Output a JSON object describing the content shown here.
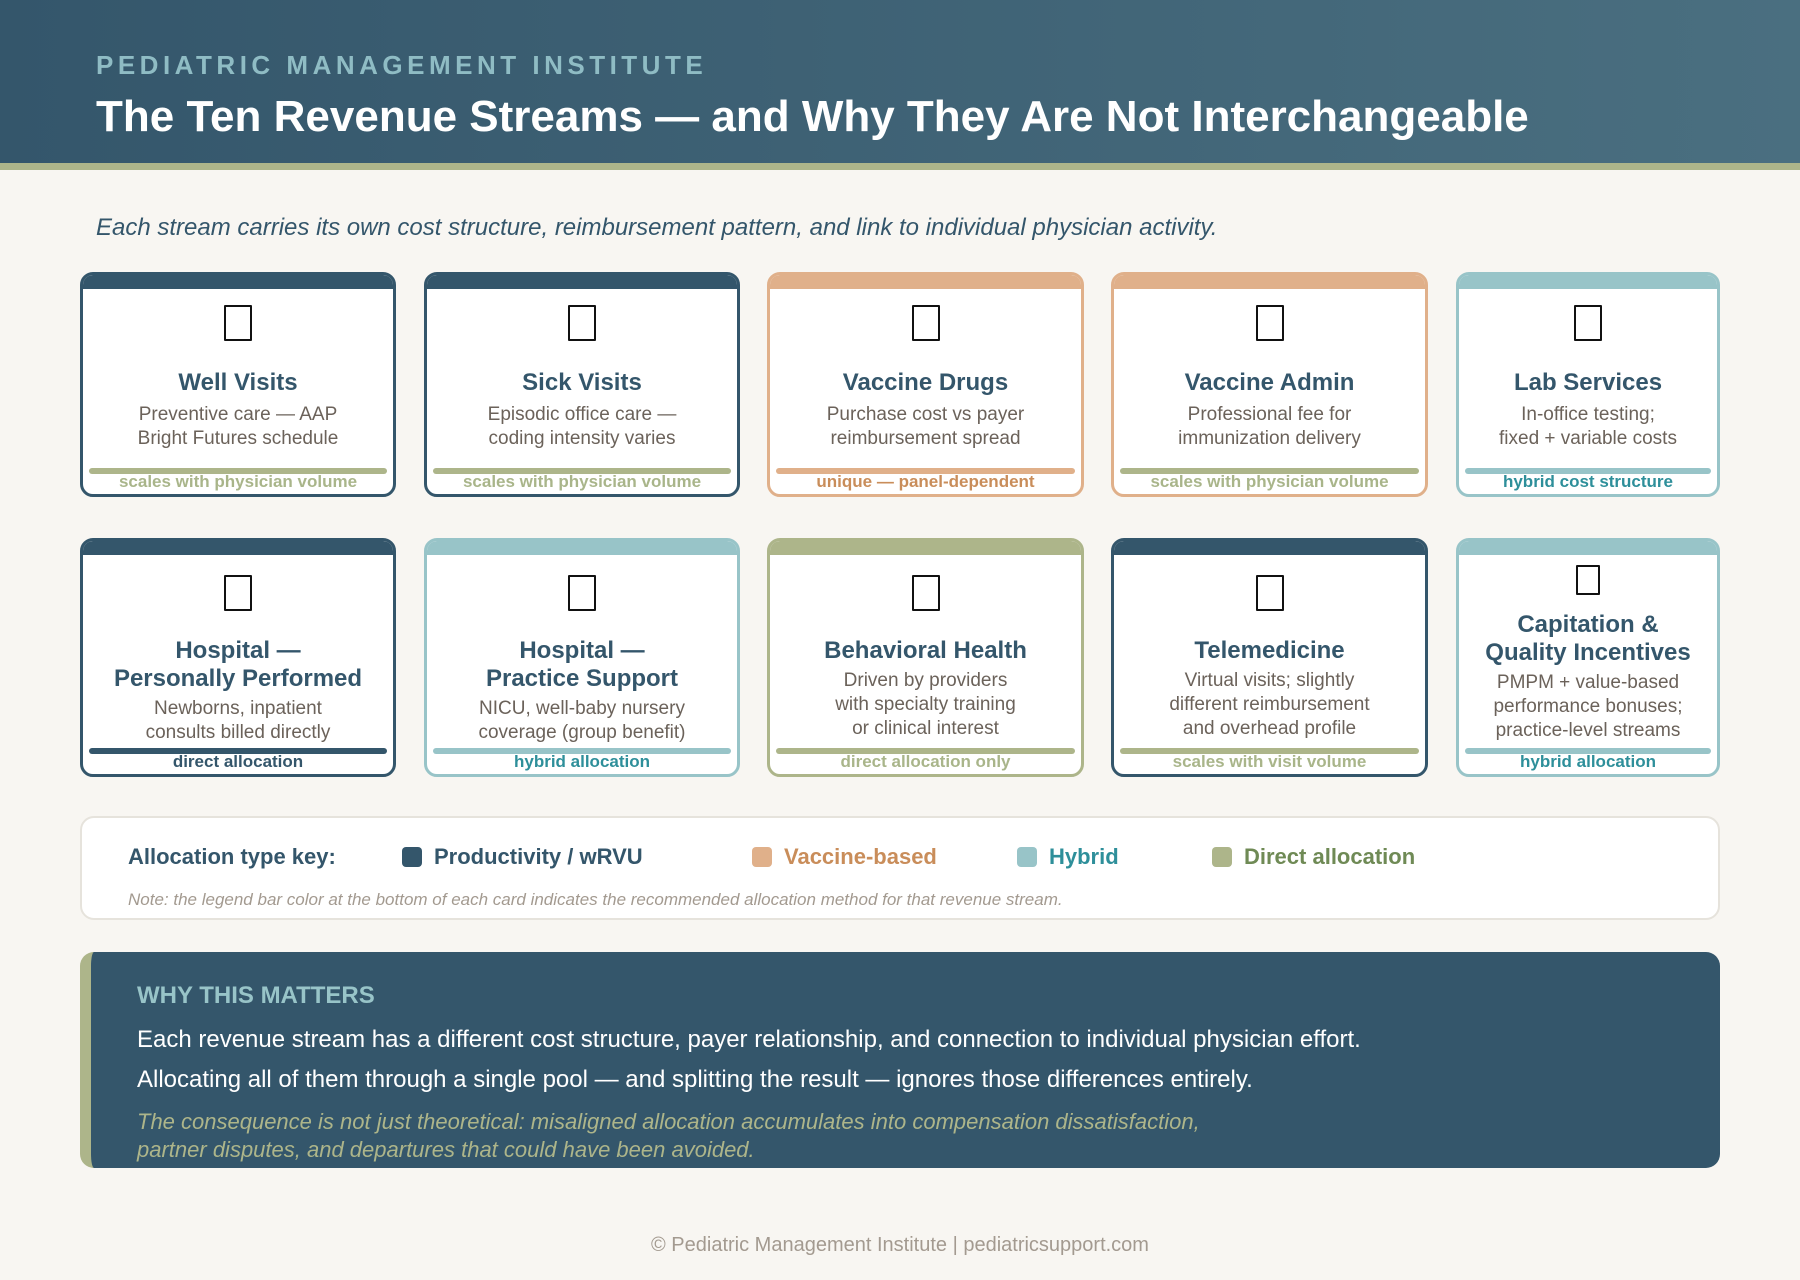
{
  "header": {
    "org": "PEDIATRIC MANAGEMENT INSTITUTE",
    "title": "The Ten Revenue Streams — and Why They Are Not Interchangeable"
  },
  "subtitle": "Each stream carries its own cost structure, reimbursement pattern, and link to individual physician activity.",
  "colors": {
    "productivity": "#34566b",
    "vaccine": "#e0b08a",
    "hybrid": "#98c4c8",
    "direct": "#adb58a"
  },
  "cards": [
    {
      "title": "Well Visits",
      "desc": [
        "Preventive care — AAP",
        "Bright Futures schedule"
      ],
      "label": "scales with physician volume",
      "type": "productivity",
      "bar": "direct",
      "icon": "missing-glyph-icon"
    },
    {
      "title": "Sick Visits",
      "desc": [
        "Episodic office care —",
        "coding intensity varies"
      ],
      "label": "scales with physician volume",
      "type": "productivity",
      "bar": "direct",
      "icon": "missing-glyph-icon"
    },
    {
      "title": "Vaccine Drugs",
      "desc": [
        "Purchase cost vs payer",
        "reimbursement spread"
      ],
      "label": "unique — panel-dependent",
      "type": "vaccine",
      "bar": "vaccine",
      "icon": "missing-glyph-icon"
    },
    {
      "title": "Vaccine Admin",
      "desc": [
        "Professional fee for",
        "immunization delivery"
      ],
      "label": "scales with physician volume",
      "type": "vaccine",
      "bar": "direct",
      "icon": "missing-glyph-icon"
    },
    {
      "title": "Lab Services",
      "desc": [
        "In-office testing;",
        "fixed + variable costs"
      ],
      "label": "hybrid cost structure",
      "type": "hybrid",
      "bar": "hybrid",
      "icon": "missing-glyph-icon"
    },
    {
      "title": "Hospital —\nPersonally Performed",
      "desc": [
        "Newborns, inpatient",
        "consults billed directly"
      ],
      "label": "direct allocation",
      "type": "productivity",
      "bar": "productivity",
      "icon": "missing-glyph-icon"
    },
    {
      "title": "Hospital —\nPractice Support",
      "desc": [
        "NICU, well-baby nursery",
        "coverage (group benefit)"
      ],
      "label": "hybrid allocation",
      "type": "hybrid",
      "bar": "hybrid",
      "icon": "missing-glyph-icon"
    },
    {
      "title": "Behavioral Health",
      "desc": [
        "Driven by providers",
        "with specialty training",
        "or clinical interest"
      ],
      "label": "direct allocation only",
      "type": "direct",
      "bar": "direct",
      "icon": "missing-glyph-icon"
    },
    {
      "title": "Telemedicine",
      "desc": [
        "Virtual visits; slightly",
        "different reimbursement",
        "and overhead profile"
      ],
      "label": "scales with visit volume",
      "type": "productivity",
      "bar": "direct",
      "icon": "missing-glyph-icon"
    },
    {
      "title": "Capitation &\nQuality Incentives",
      "desc": [
        "PMPM + value-based",
        "performance bonuses;",
        "practice-level streams"
      ],
      "label": "hybrid allocation",
      "type": "hybrid",
      "bar": "hybrid",
      "icon": "missing-glyph-icon"
    }
  ],
  "legend": {
    "title": "Allocation type key:",
    "items": [
      {
        "label": "Productivity / wRVU",
        "key": "productivity"
      },
      {
        "label": "Vaccine-based",
        "key": "vaccine"
      },
      {
        "label": "Hybrid",
        "key": "hybrid"
      },
      {
        "label": "Direct allocation",
        "key": "direct"
      }
    ],
    "note": "Note: the legend bar color at the bottom of each card indicates the recommended allocation method for that revenue stream."
  },
  "why": {
    "heading": "WHY THIS MATTERS",
    "line1": "Each revenue stream has a different cost structure, payer relationship, and connection to individual physician effort.",
    "line2": "Allocating all of them through a single pool — and splitting the result — ignores those differences entirely.",
    "consequence": [
      "The consequence is not just theoretical: misaligned allocation accumulates into compensation dissatisfaction,",
      "partner disputes, and departures that could have been avoided."
    ]
  },
  "footer": "© Pediatric Management Institute | pediatricsupport.com"
}
